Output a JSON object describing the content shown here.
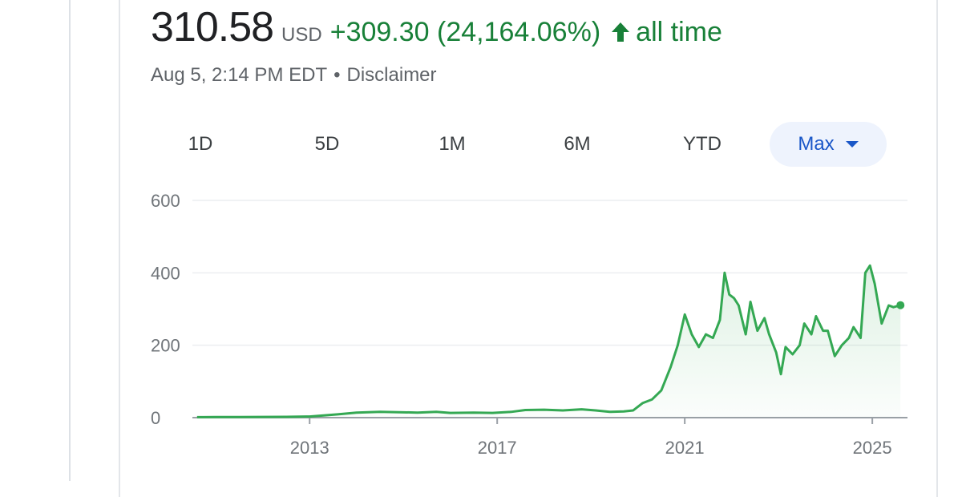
{
  "quote": {
    "price": "310.58",
    "currency": "USD",
    "change": "+309.30 (24,164.06%)",
    "period": "all time",
    "timestamp": "Aug 5, 2:14 PM EDT",
    "separator": "•",
    "disclaimer": "Disclaimer"
  },
  "range_tabs": [
    {
      "label": "1D"
    },
    {
      "label": "5D"
    },
    {
      "label": "1M"
    },
    {
      "label": "6M"
    },
    {
      "label": "YTD"
    },
    {
      "label": "Max",
      "selected": true
    }
  ],
  "colors": {
    "up_green": "#188038",
    "line_green": "#34a853",
    "accent_blue": "#1a57c8",
    "muted_text": "#5f6368"
  },
  "icons": {
    "change_direction": "arrow-up-icon"
  },
  "chart_data": {
    "type": "area",
    "x_ticks": [
      "2013",
      "2017",
      "2021",
      "2025"
    ],
    "y_ticks": [
      "0",
      "200",
      "400",
      "600"
    ],
    "ylim": [
      0,
      600
    ],
    "xlim": [
      2010.5,
      2025.75
    ],
    "grid": true,
    "series": [
      {
        "points": [
          [
            2010.6,
            1.3
          ],
          [
            2011.0,
            1.6
          ],
          [
            2011.5,
            1.8
          ],
          [
            2012.0,
            2.0
          ],
          [
            2012.5,
            2.2
          ],
          [
            2013.0,
            3
          ],
          [
            2013.3,
            6
          ],
          [
            2013.6,
            9
          ],
          [
            2014.0,
            14
          ],
          [
            2014.5,
            16
          ],
          [
            2014.9,
            15
          ],
          [
            2015.3,
            14
          ],
          [
            2015.7,
            16
          ],
          [
            2016.0,
            13
          ],
          [
            2016.5,
            14
          ],
          [
            2016.9,
            13
          ],
          [
            2017.3,
            16
          ],
          [
            2017.6,
            21
          ],
          [
            2018.0,
            22
          ],
          [
            2018.4,
            20
          ],
          [
            2018.8,
            23
          ],
          [
            2019.1,
            20
          ],
          [
            2019.4,
            16
          ],
          [
            2019.7,
            17
          ],
          [
            2019.9,
            20
          ],
          [
            2020.1,
            40
          ],
          [
            2020.3,
            50
          ],
          [
            2020.5,
            75
          ],
          [
            2020.7,
            140
          ],
          [
            2020.85,
            200
          ],
          [
            2021.0,
            285
          ],
          [
            2021.15,
            230
          ],
          [
            2021.3,
            195
          ],
          [
            2021.45,
            230
          ],
          [
            2021.6,
            220
          ],
          [
            2021.75,
            270
          ],
          [
            2021.85,
            400
          ],
          [
            2021.95,
            340
          ],
          [
            2022.05,
            330
          ],
          [
            2022.15,
            310
          ],
          [
            2022.3,
            230
          ],
          [
            2022.4,
            320
          ],
          [
            2022.55,
            240
          ],
          [
            2022.7,
            275
          ],
          [
            2022.8,
            230
          ],
          [
            2022.95,
            180
          ],
          [
            2023.05,
            120
          ],
          [
            2023.15,
            195
          ],
          [
            2023.3,
            175
          ],
          [
            2023.45,
            200
          ],
          [
            2023.55,
            260
          ],
          [
            2023.7,
            230
          ],
          [
            2023.8,
            280
          ],
          [
            2023.95,
            240
          ],
          [
            2024.05,
            240
          ],
          [
            2024.2,
            170
          ],
          [
            2024.35,
            200
          ],
          [
            2024.5,
            220
          ],
          [
            2024.6,
            250
          ],
          [
            2024.75,
            220
          ],
          [
            2024.85,
            400
          ],
          [
            2024.95,
            420
          ],
          [
            2025.05,
            370
          ],
          [
            2025.2,
            260
          ],
          [
            2025.35,
            310
          ],
          [
            2025.45,
            305
          ],
          [
            2025.6,
            310.58
          ]
        ]
      }
    ]
  }
}
